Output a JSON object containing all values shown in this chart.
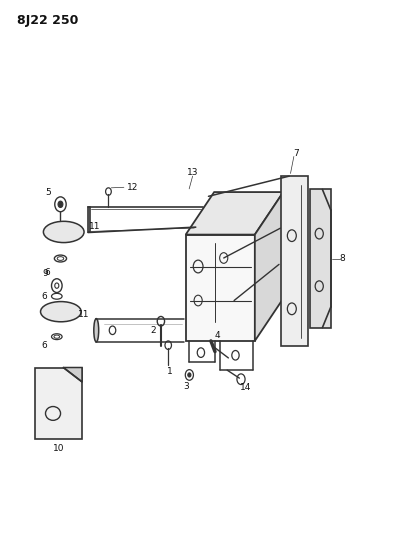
{
  "title": "8J22 250",
  "bg_color": "#ffffff",
  "line_color": "#333333",
  "text_color": "#111111",
  "fig_width": 4.08,
  "fig_height": 5.33,
  "dpi": 100
}
